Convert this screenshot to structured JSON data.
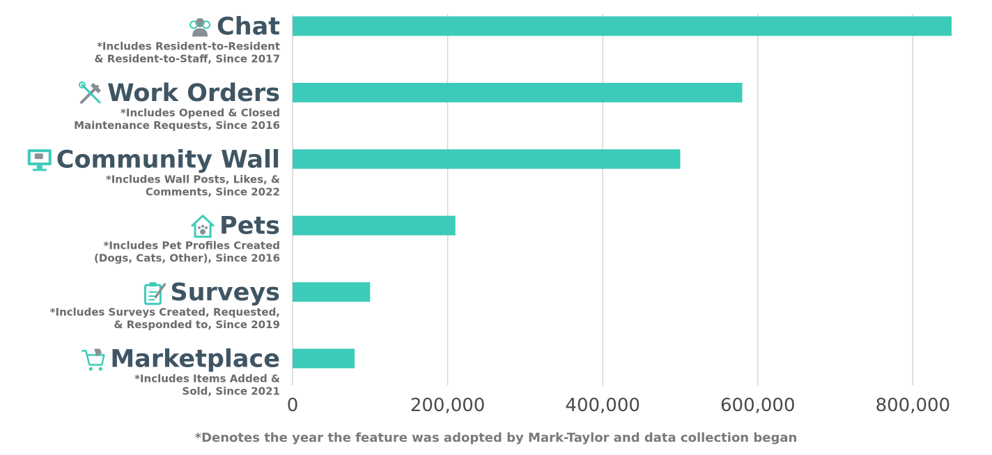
{
  "chart_data": {
    "type": "bar",
    "orientation": "horizontal",
    "categories": [
      "Chat",
      "Work Orders",
      "Community Wall",
      "Pets",
      "Surveys",
      "Marketplace"
    ],
    "values": [
      850000,
      580000,
      500000,
      210000,
      100000,
      80000
    ],
    "category_notes": [
      [
        "*Includes Resident-to-Resident",
        "& Resident-to-Staff, Since 2017"
      ],
      [
        "*Includes Opened & Closed",
        "Maintenance Requests, Since 2016"
      ],
      [
        "*Includes Wall Posts, Likes, &",
        "Comments, Since 2022"
      ],
      [
        "*Includes Pet Profiles Created",
        "(Dogs, Cats, Other), Since 2016"
      ],
      [
        "*Includes Surveys Created, Requested,",
        "& Responded to, Since 2019"
      ],
      [
        "*Includes Items Added &",
        "Sold, Since 2021"
      ]
    ],
    "category_icons": [
      "users-icon",
      "tools-icon",
      "monitor-icon",
      "pet-house-icon",
      "clipboard-icon",
      "cart-icon"
    ],
    "x_ticks": [
      "0",
      "200,000",
      "400,000",
      "600,000",
      "800,000"
    ],
    "x_tick_values": [
      0,
      200000,
      400000,
      600000,
      800000
    ],
    "xlim": [
      0,
      850000
    ],
    "grid": true,
    "bar_color": "#3ccbb8",
    "title": "",
    "xlabel": "",
    "ylabel": ""
  },
  "footnote": "*Denotes the year the feature was adopted by Mark-Taylor and data collection began",
  "colors": {
    "title_text": "#3f5563",
    "note_text": "#6b6b6b",
    "grid": "#d4d4d4",
    "icon_teal": "#3ccbb8",
    "icon_gray": "#8a8f93"
  }
}
